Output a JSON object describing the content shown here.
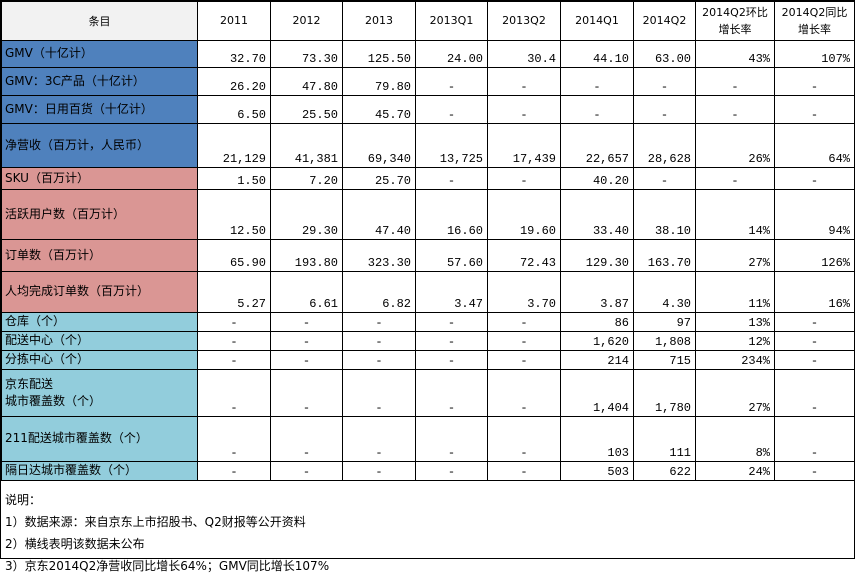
{
  "table": {
    "header": [
      "条目",
      "2011",
      "2012",
      "2013",
      "2013Q1",
      "2013Q2",
      "2014Q1",
      "2014Q2",
      "2014Q2环比增长率",
      "2014Q2同比增长率"
    ],
    "rows": [
      {
        "label": "GMV（十亿计）",
        "color": "#4f81bd",
        "cells": [
          "32.70",
          "73.30",
          "125.50",
          "24.00",
          "30.4",
          "44.10",
          "63.00",
          "43%",
          "107%"
        ]
      },
      {
        "label": "GMV：3C产品（十亿计）",
        "color": "#4f81bd",
        "cells": [
          "26.20",
          "47.80",
          "79.80",
          "-",
          "-",
          "-",
          "-",
          "-",
          "-"
        ]
      },
      {
        "label": "GMV：日用百货（十亿计）",
        "color": "#4f81bd",
        "cells": [
          "6.50",
          "25.50",
          "45.70",
          "-",
          "-",
          "-",
          "-",
          "-",
          "-"
        ]
      },
      {
        "label": "净营收（百万计，人民币）",
        "color": "#4f81bd",
        "cells": [
          "21,129",
          "41,381",
          "69,340",
          "13,725",
          "17,439",
          "22,657",
          "28,628",
          "26%",
          "64%"
        ]
      },
      {
        "label": "SKU（百万计）",
        "color": "#da9694",
        "cells": [
          "1.50",
          "7.20",
          "25.70",
          "-",
          "-",
          "40.20",
          "-",
          "-",
          "-"
        ]
      },
      {
        "label": "活跃用户数（百万计）",
        "color": "#da9694",
        "cells": [
          "12.50",
          "29.30",
          "47.40",
          "16.60",
          "19.60",
          "33.40",
          "38.10",
          "14%",
          "94%"
        ]
      },
      {
        "label": "订单数（百万计）",
        "color": "#da9694",
        "cells": [
          "65.90",
          "193.80",
          "323.30",
          "57.60",
          "72.43",
          "129.30",
          "163.70",
          "27%",
          "126%"
        ]
      },
      {
        "label": "人均完成订单数（百万计）",
        "color": "#da9694",
        "cells": [
          "5.27",
          "6.61",
          "6.82",
          "3.47",
          "3.70",
          "3.87",
          "4.30",
          "11%",
          "16%"
        ]
      },
      {
        "label": "仓库（个）",
        "color": "#92cddc",
        "cells": [
          "-",
          "-",
          "-",
          "-",
          "-",
          "86",
          "97",
          "13%",
          "-"
        ]
      },
      {
        "label": "配送中心（个）",
        "color": "#92cddc",
        "cells": [
          "-",
          "-",
          "-",
          "-",
          "-",
          "1,620",
          "1,808",
          "12%",
          "-"
        ]
      },
      {
        "label": "分拣中心（个）",
        "color": "#92cddc",
        "cells": [
          "-",
          "-",
          "-",
          "-",
          "-",
          "214",
          "715",
          "234%",
          "-"
        ]
      },
      {
        "label": "京东配送\n城市覆盖数（个）",
        "color": "#92cddc",
        "cells": [
          "-",
          "-",
          "-",
          "-",
          "-",
          "1,404",
          "1,780",
          "27%",
          "-"
        ]
      },
      {
        "label": "211配送城市覆盖数（个）",
        "color": "#92cddc",
        "cells": [
          "-",
          "-",
          "-",
          "-",
          "-",
          "103",
          "111",
          "8%",
          "-"
        ]
      },
      {
        "label": "隔日达城市覆盖数（个）",
        "color": "#92cddc",
        "cells": [
          "-",
          "-",
          "-",
          "-",
          "-",
          "503",
          "622",
          "24%",
          "-"
        ]
      }
    ]
  },
  "notes": [
    "说明：",
    "1）数据来源：来自京东上市招股书、Q2财报等公开资料",
    "2）横线表明该数据未公布",
    "3）京东2014Q2净营收同比增长64%；GMV同比增长107%"
  ]
}
